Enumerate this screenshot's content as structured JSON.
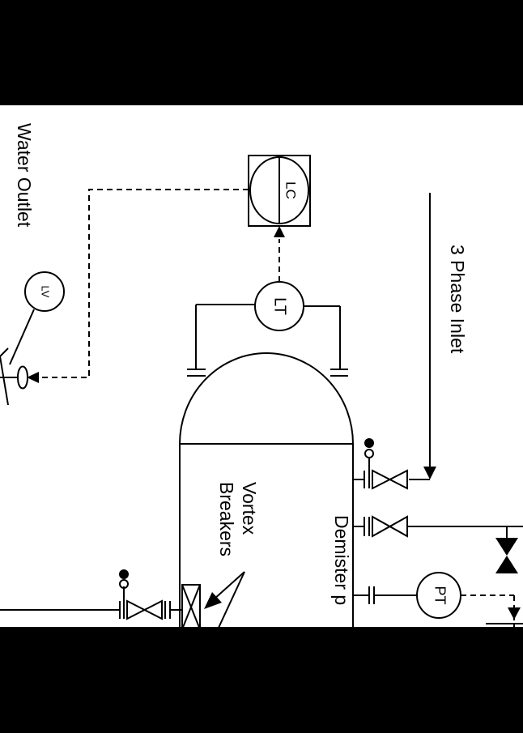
{
  "labels": {
    "water_outlet": "Water Outlet",
    "three_phase_inlet": "3 Phase Inlet",
    "vortex_line1": "Vortex",
    "vortex_line2": "Breakers",
    "demister": "Demister p"
  },
  "instruments": {
    "lc": "LC",
    "lt": "LT",
    "lv": "LV",
    "pt": "PT"
  }
}
